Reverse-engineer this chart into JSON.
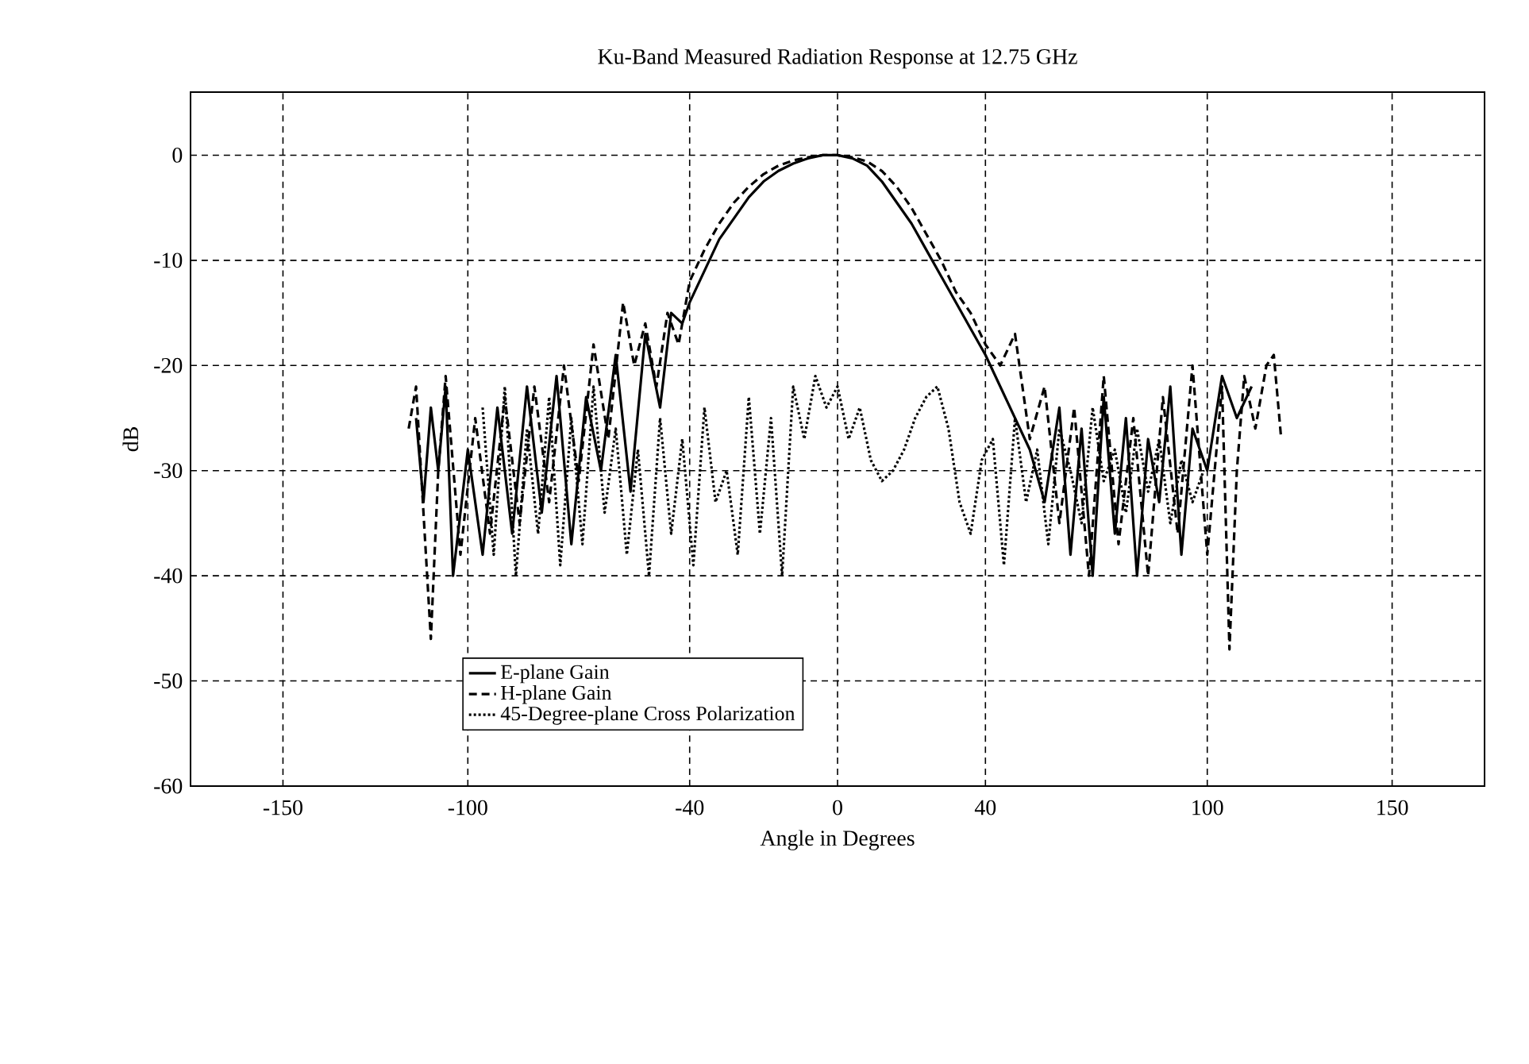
{
  "chart_data": {
    "type": "line",
    "title": "Ku-Band Measured Radiation Response at 12.75 GHz",
    "xlabel": "Angle in Degrees",
    "ylabel": "dB",
    "xlim": [
      -175,
      175
    ],
    "xticks": [
      -150,
      -100,
      -40,
      0,
      40,
      100,
      150
    ],
    "ylim": [
      -60,
      6
    ],
    "yticks": [
      -60,
      -50,
      -40,
      -30,
      -20,
      -10,
      0
    ],
    "grid": true,
    "legend": "bottom",
    "marker": "none",
    "series": [
      {
        "name": "E-plane Gain",
        "color": "#000000",
        "line_style": "solid",
        "x": [
          -114,
          -112,
          -110,
          -108,
          -106,
          -104,
          -100,
          -96,
          -92,
          -88,
          -84,
          -80,
          -76,
          -72,
          -68,
          -64,
          -60,
          -56,
          -52,
          -48,
          -45,
          -42,
          -40,
          -36,
          -32,
          -28,
          -24,
          -20,
          -16,
          -12,
          -8,
          -4,
          0,
          4,
          8,
          12,
          16,
          20,
          24,
          28,
          32,
          36,
          40,
          44,
          48,
          52,
          56,
          60,
          63,
          66,
          69,
          72,
          75,
          78,
          81,
          84,
          87,
          90,
          93,
          96,
          100,
          104,
          108,
          112
        ],
        "values": [
          -25,
          -33,
          -24,
          -30,
          -22,
          -40,
          -28,
          -38,
          -24,
          -36,
          -22,
          -34,
          -21,
          -37,
          -23,
          -30,
          -19,
          -32,
          -17,
          -24,
          -15,
          -16,
          -14,
          -11,
          -8,
          -6,
          -4,
          -2.5,
          -1.5,
          -0.8,
          -0.3,
          0,
          0,
          -0.3,
          -1,
          -2.5,
          -4.5,
          -6.5,
          -9,
          -11.5,
          -14,
          -16.5,
          -19,
          -22,
          -25,
          -28,
          -33,
          -24,
          -38,
          -26,
          -40,
          -23,
          -36,
          -25,
          -40,
          -27,
          -33,
          -22,
          -38,
          -26,
          -30,
          -21,
          -25,
          -22
        ]
      },
      {
        "name": "H-plane Gain",
        "color": "#000000",
        "line_style": "dashed",
        "x": [
          -116,
          -114,
          -112,
          -110,
          -108,
          -106,
          -102,
          -98,
          -94,
          -90,
          -86,
          -82,
          -78,
          -74,
          -70,
          -66,
          -62,
          -58,
          -55,
          -52,
          -49,
          -46,
          -43,
          -40,
          -36,
          -32,
          -28,
          -24,
          -20,
          -16,
          -12,
          -8,
          -4,
          0,
          4,
          8,
          12,
          16,
          20,
          24,
          28,
          32,
          36,
          40,
          44,
          48,
          52,
          56,
          60,
          64,
          68,
          72,
          76,
          80,
          84,
          88,
          92,
          96,
          100,
          104,
          106,
          108,
          110,
          113,
          116,
          118,
          120
        ],
        "values": [
          -26,
          -22,
          -34,
          -46,
          -30,
          -21,
          -38,
          -25,
          -36,
          -23,
          -35,
          -22,
          -33,
          -20,
          -31,
          -18,
          -27,
          -14,
          -20,
          -16,
          -22,
          -15,
          -18,
          -12,
          -9,
          -6.5,
          -4.5,
          -3,
          -1.8,
          -1,
          -0.5,
          -0.2,
          0,
          0,
          -0.2,
          -0.6,
          -1.5,
          -3,
          -5,
          -7.5,
          -10,
          -13,
          -15,
          -18,
          -20,
          -17,
          -27,
          -22,
          -35,
          -24,
          -40,
          -21,
          -37,
          -25,
          -40,
          -23,
          -36,
          -20,
          -38,
          -22,
          -47,
          -30,
          -21,
          -26,
          -20,
          -19,
          -27
        ]
      },
      {
        "name": "45-Degree-plane Cross Polarization",
        "color": "#000000",
        "line_style": "dotted",
        "x": [
          -96,
          -93,
          -90,
          -87,
          -84,
          -81,
          -78,
          -75,
          -72,
          -69,
          -66,
          -63,
          -60,
          -57,
          -54,
          -51,
          -48,
          -45,
          -42,
          -39,
          -36,
          -33,
          -30,
          -27,
          -24,
          -21,
          -18,
          -15,
          -12,
          -9,
          -6,
          -3,
          0,
          3,
          6,
          9,
          12,
          15,
          18,
          21,
          24,
          27,
          30,
          33,
          36,
          39,
          42,
          45,
          48,
          51,
          54,
          57,
          60,
          63,
          66,
          69,
          72,
          75,
          78,
          81,
          84,
          87,
          90,
          93,
          96,
          99
        ],
        "values": [
          -24,
          -38,
          -22,
          -40,
          -26,
          -36,
          -23,
          -39,
          -25,
          -37,
          -22,
          -34,
          -26,
          -38,
          -28,
          -40,
          -25,
          -36,
          -27,
          -39,
          -24,
          -33,
          -30,
          -38,
          -23,
          -36,
          -25,
          -40,
          -22,
          -27,
          -21,
          -24,
          -22,
          -27,
          -24,
          -29,
          -31,
          -30,
          -28,
          -25,
          -23,
          -22,
          -26,
          -33,
          -36,
          -29,
          -27,
          -39,
          -25,
          -33,
          -28,
          -37,
          -26,
          -30,
          -35,
          -24,
          -31,
          -28,
          -34,
          -26,
          -32,
          -27,
          -35,
          -29,
          -33,
          -30
        ]
      }
    ]
  }
}
